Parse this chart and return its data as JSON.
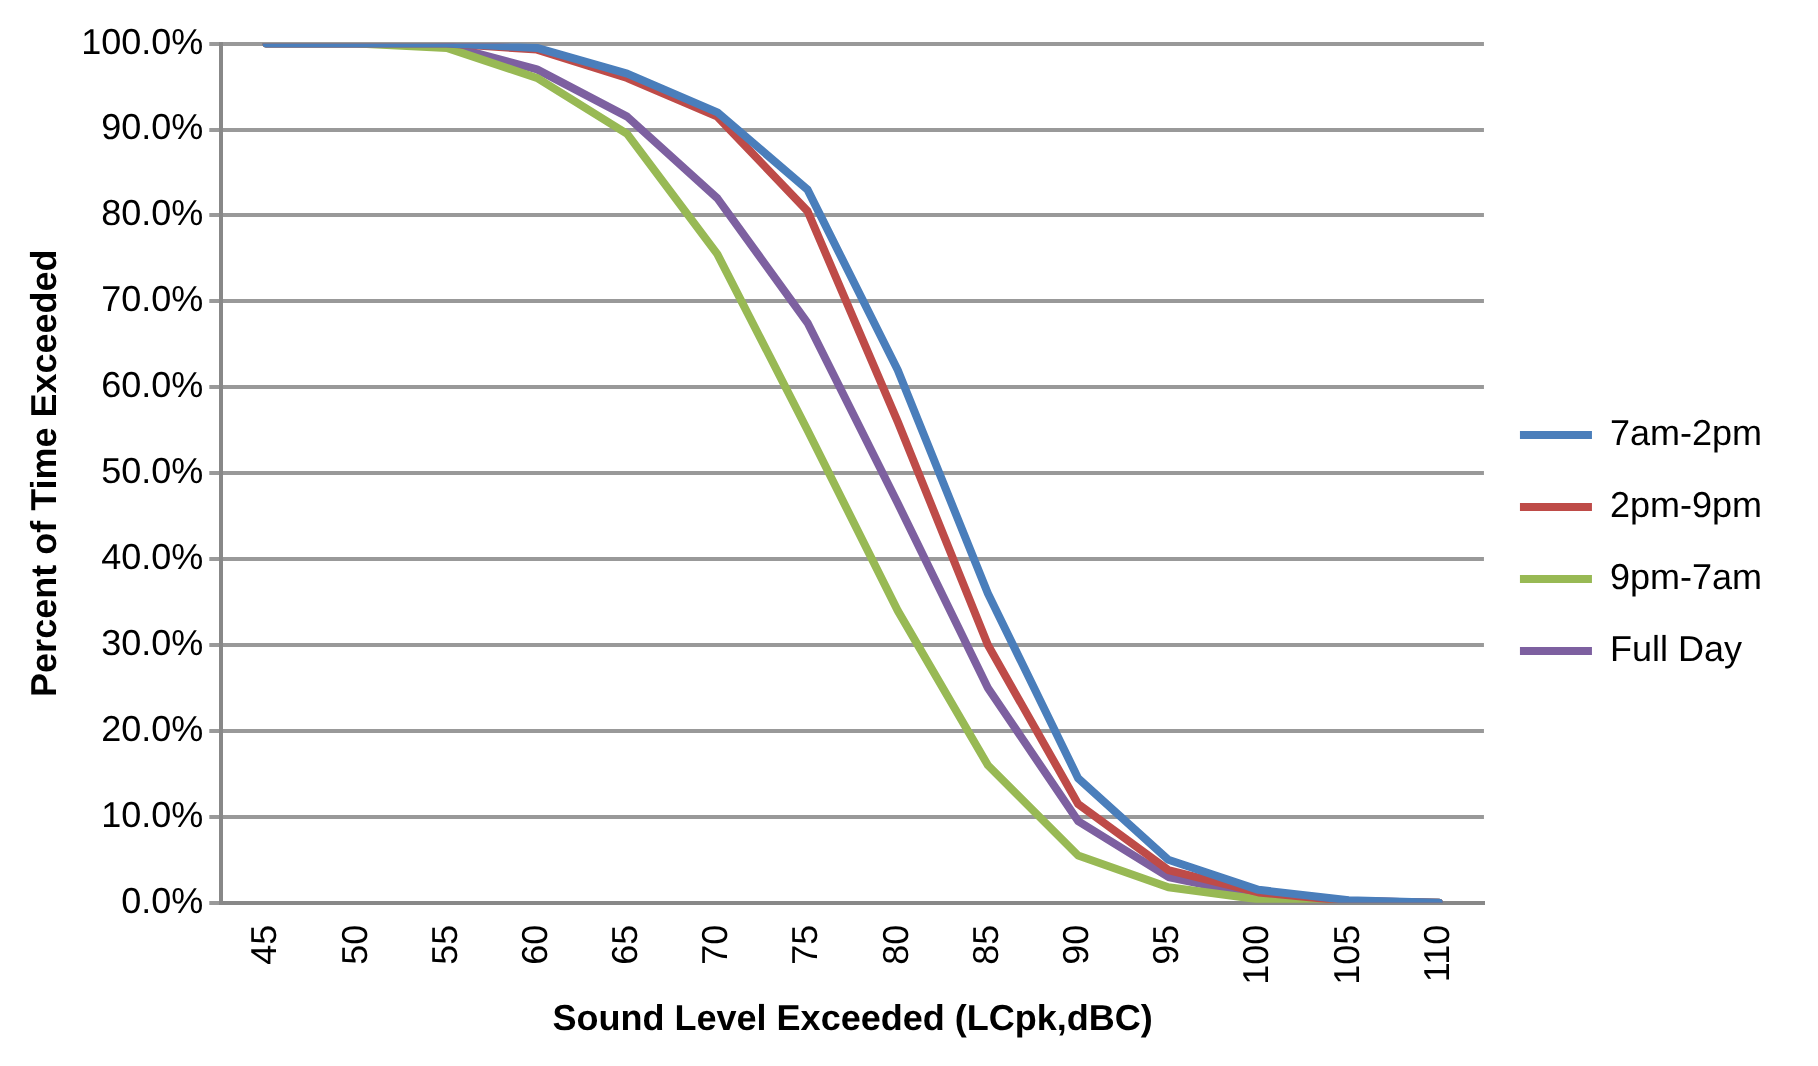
{
  "chart_data": {
    "type": "line",
    "xlabel": "Sound Level Exceeded (LCpk,dBC)",
    "ylabel": "Percent of Time Exceeded",
    "categories": [
      "45",
      "50",
      "55",
      "60",
      "65",
      "70",
      "75",
      "80",
      "85",
      "90",
      "95",
      "100",
      "105",
      "110"
    ],
    "series": [
      {
        "name": "7am-2pm",
        "color": "#4a7ebb",
        "values": [
          100,
          100,
          100,
          99.5,
          96.5,
          92,
          83,
          62,
          36,
          14.5,
          5,
          1.5,
          0.3,
          0
        ]
      },
      {
        "name": "2pm-9pm",
        "color": "#be4b48",
        "values": [
          100,
          100,
          100,
          99.3,
          96,
          91.5,
          80.5,
          56,
          30,
          11.5,
          3.8,
          1.2,
          0.2,
          0
        ]
      },
      {
        "name": "9pm-7am",
        "color": "#98b954",
        "values": [
          100,
          100,
          99.5,
          96,
          89.5,
          75.5,
          55,
          34,
          16,
          5.5,
          1.8,
          0.4,
          0.1,
          0
        ]
      },
      {
        "name": "Full Day",
        "color": "#7d60a0",
        "values": [
          100,
          100,
          99.8,
          97,
          91.5,
          82,
          67.5,
          46.5,
          25,
          9.5,
          3,
          0.8,
          0.2,
          0
        ]
      }
    ],
    "ylim": [
      0,
      100
    ],
    "yticks": [
      {
        "value": 0,
        "label": "0.0%"
      },
      {
        "value": 10,
        "label": "10.0%"
      },
      {
        "value": 20,
        "label": "20.0%"
      },
      {
        "value": 30,
        "label": "30.0%"
      },
      {
        "value": 40,
        "label": "40.0%"
      },
      {
        "value": 50,
        "label": "50.0%"
      },
      {
        "value": 60,
        "label": "60.0%"
      },
      {
        "value": 70,
        "label": "70.0%"
      },
      {
        "value": 80,
        "label": "80.0%"
      },
      {
        "value": 90,
        "label": "90.0%"
      },
      {
        "value": 100,
        "label": "100.0%"
      }
    ],
    "grid": "y",
    "legend": "right",
    "marker": "none",
    "line_style": "solid"
  }
}
